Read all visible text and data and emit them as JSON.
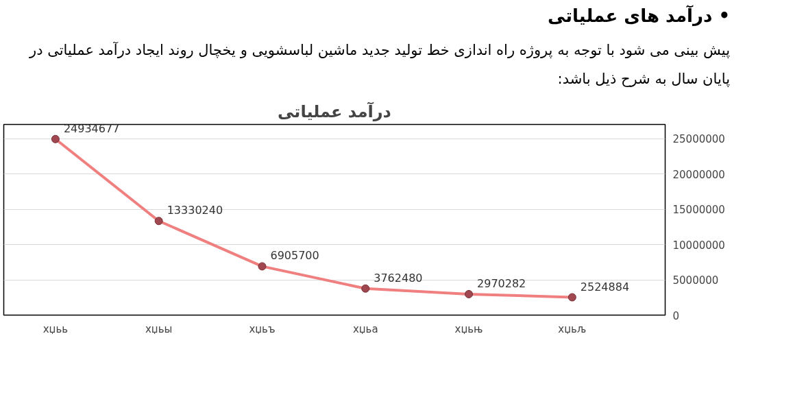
{
  "chart_data": {
    "type": "line",
    "title": "درآمد عملیاتی",
    "annotations": [
      "•  درآمد های عملیاتی",
      "پیش بینی می شود با توجه به پروژه راه اندازی خط تولید جدید ماشین لباسشویی و یخچال روند ایجاد درآمد عملیاتی در پایان سال به شرح ذیل باشد:"
    ],
    "categories": [
      "хџьь",
      "хџьы",
      "хџьъ",
      "хџьа",
      "хџьњ",
      "хџьљ"
    ],
    "series": [
      {
        "color": "#f08080",
        "values": [
          24934677,
          13330240,
          6905700,
          3762480,
          2970282,
          2524884
        ]
      }
    ],
    "ylim": [
      0,
      27000000
    ],
    "yticks": [
      0,
      5000000,
      10000000,
      15000000,
      20000000,
      25000000
    ],
    "grid": "y",
    "marker": "circle",
    "data_labels": true
  }
}
